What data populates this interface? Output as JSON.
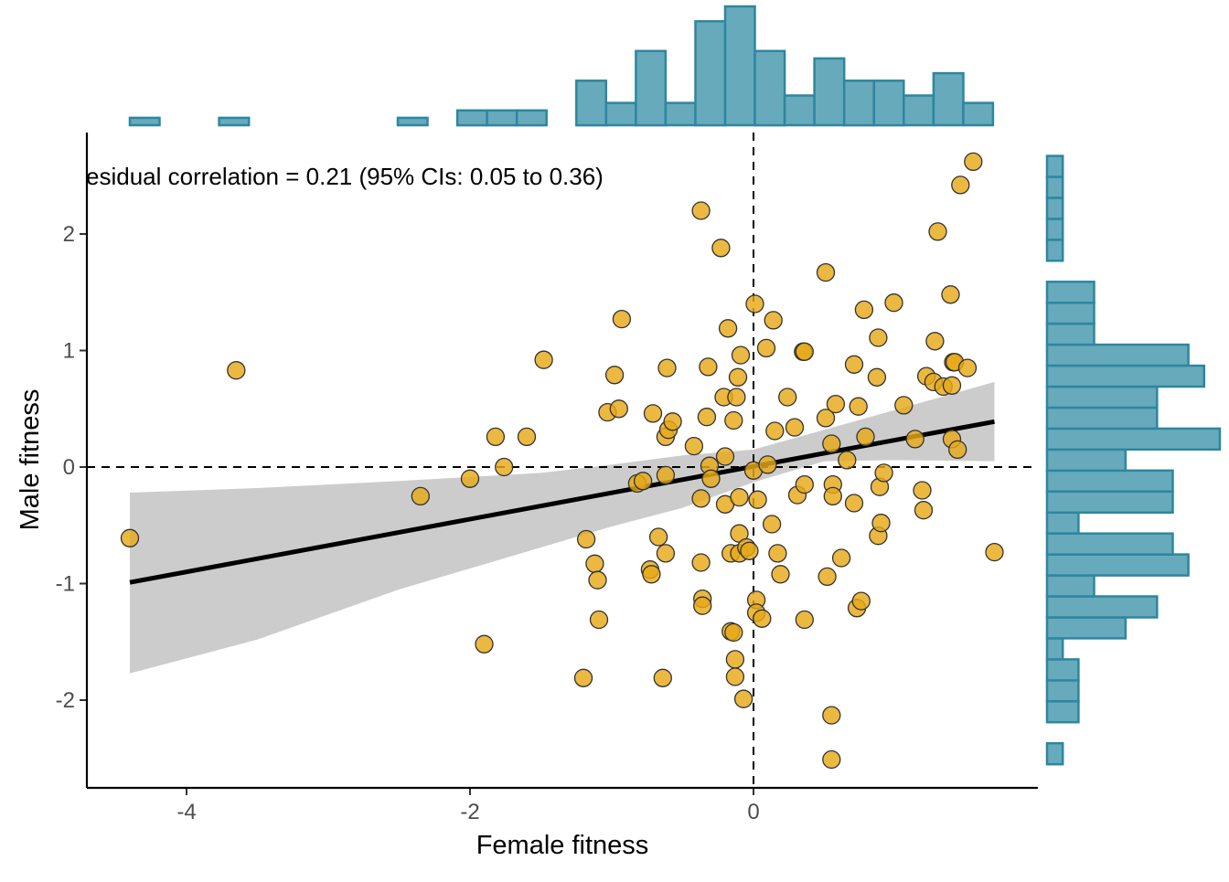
{
  "chart_data": {
    "type": "scatter",
    "title": "",
    "xlabel": "Female fitness",
    "ylabel": "Male fitness",
    "annotation": "esidual correlation = 0.21 (95% CIs: 0.05 to 0.36)",
    "xlim": [
      -4.7,
      2.0
    ],
    "ylim": [
      -2.75,
      2.85
    ],
    "x_ticks": [
      -4,
      -2,
      0
    ],
    "x_tick_labels": [
      "-4",
      "-2",
      "0"
    ],
    "y_ticks": [
      -2,
      -1,
      0,
      1,
      2
    ],
    "y_tick_labels": [
      "-2",
      "-1",
      "0",
      "1",
      "2"
    ],
    "grid": false,
    "reference_lines": {
      "x": 0,
      "y": 0,
      "style": "dashed"
    },
    "colors": {
      "points_fill": "#E6A817",
      "points_stroke": "#333333",
      "regression_line": "#000000",
      "confidence_band": "#CCCCCC",
      "histogram_fill": "#67AABB",
      "histogram_stroke": "#2E86A0"
    },
    "points": [
      {
        "x": -4.4,
        "y": -0.61
      },
      {
        "x": -3.65,
        "y": 0.83
      },
      {
        "x": -2.35,
        "y": -0.25
      },
      {
        "x": -2.0,
        "y": -0.1
      },
      {
        "x": -1.9,
        "y": -1.52
      },
      {
        "x": -1.82,
        "y": 0.26
      },
      {
        "x": -1.76,
        "y": 0.0
      },
      {
        "x": -1.6,
        "y": 0.26
      },
      {
        "x": -1.48,
        "y": 0.92
      },
      {
        "x": -1.2,
        "y": -1.81
      },
      {
        "x": -1.18,
        "y": -0.62
      },
      {
        "x": -1.12,
        "y": -0.83
      },
      {
        "x": -1.1,
        "y": -0.97
      },
      {
        "x": -1.09,
        "y": -1.31
      },
      {
        "x": -1.03,
        "y": 0.47
      },
      {
        "x": -0.98,
        "y": 0.79
      },
      {
        "x": -0.95,
        "y": 0.5
      },
      {
        "x": -0.93,
        "y": 1.27
      },
      {
        "x": -0.82,
        "y": -0.14
      },
      {
        "x": -0.78,
        "y": -0.12
      },
      {
        "x": -0.73,
        "y": -0.88
      },
      {
        "x": -0.72,
        "y": -0.92
      },
      {
        "x": -0.71,
        "y": 0.46
      },
      {
        "x": -0.67,
        "y": -0.6
      },
      {
        "x": -0.64,
        "y": -1.81
      },
      {
        "x": -0.62,
        "y": 0.26
      },
      {
        "x": -0.62,
        "y": -0.07
      },
      {
        "x": -0.62,
        "y": -0.74
      },
      {
        "x": -0.61,
        "y": 0.85
      },
      {
        "x": -0.6,
        "y": 0.32
      },
      {
        "x": -0.57,
        "y": 0.39
      },
      {
        "x": -0.42,
        "y": 0.18
      },
      {
        "x": -0.37,
        "y": 2.2
      },
      {
        "x": -0.37,
        "y": -0.27
      },
      {
        "x": -0.37,
        "y": -0.82
      },
      {
        "x": -0.36,
        "y": -1.13
      },
      {
        "x": -0.36,
        "y": -1.19
      },
      {
        "x": -0.33,
        "y": 0.43
      },
      {
        "x": -0.32,
        "y": 0.86
      },
      {
        "x": -0.31,
        "y": 0.01
      },
      {
        "x": -0.3,
        "y": -0.1
      },
      {
        "x": -0.23,
        "y": 1.88
      },
      {
        "x": -0.21,
        "y": 0.6
      },
      {
        "x": -0.2,
        "y": 0.09
      },
      {
        "x": -0.2,
        "y": -0.32
      },
      {
        "x": -0.18,
        "y": 1.19
      },
      {
        "x": -0.16,
        "y": -1.41
      },
      {
        "x": -0.16,
        "y": -0.74
      },
      {
        "x": -0.14,
        "y": -1.42
      },
      {
        "x": -0.14,
        "y": 0.4
      },
      {
        "x": -0.13,
        "y": -1.65
      },
      {
        "x": -0.13,
        "y": -1.8
      },
      {
        "x": -0.12,
        "y": 0.6
      },
      {
        "x": -0.11,
        "y": 0.77
      },
      {
        "x": -0.1,
        "y": -0.74
      },
      {
        "x": -0.1,
        "y": -0.26
      },
      {
        "x": -0.1,
        "y": -0.57
      },
      {
        "x": -0.09,
        "y": 0.96
      },
      {
        "x": -0.07,
        "y": -1.99
      },
      {
        "x": -0.05,
        "y": -0.69
      },
      {
        "x": -0.03,
        "y": -0.72
      },
      {
        "x": 0.0,
        "y": -0.03
      },
      {
        "x": 0.01,
        "y": 1.4
      },
      {
        "x": 0.02,
        "y": -1.14
      },
      {
        "x": 0.02,
        "y": -1.25
      },
      {
        "x": 0.03,
        "y": -0.28
      },
      {
        "x": 0.06,
        "y": -1.3
      },
      {
        "x": 0.09,
        "y": 1.02
      },
      {
        "x": 0.1,
        "y": 0.02
      },
      {
        "x": 0.13,
        "y": -0.49
      },
      {
        "x": 0.14,
        "y": 1.26
      },
      {
        "x": 0.15,
        "y": 0.31
      },
      {
        "x": 0.17,
        "y": -0.74
      },
      {
        "x": 0.19,
        "y": -0.92
      },
      {
        "x": 0.24,
        "y": 0.6
      },
      {
        "x": 0.29,
        "y": 0.34
      },
      {
        "x": 0.31,
        "y": -0.24
      },
      {
        "x": 0.35,
        "y": 0.99
      },
      {
        "x": 0.36,
        "y": 0.99
      },
      {
        "x": 0.36,
        "y": -1.31
      },
      {
        "x": 0.36,
        "y": -0.15
      },
      {
        "x": 0.51,
        "y": 1.67
      },
      {
        "x": 0.51,
        "y": 0.42
      },
      {
        "x": 0.52,
        "y": -0.94
      },
      {
        "x": 0.55,
        "y": 0.2
      },
      {
        "x": 0.55,
        "y": -2.13
      },
      {
        "x": 0.55,
        "y": -2.51
      },
      {
        "x": 0.56,
        "y": -0.15
      },
      {
        "x": 0.56,
        "y": -0.25
      },
      {
        "x": 0.58,
        "y": 0.54
      },
      {
        "x": 0.62,
        "y": -0.78
      },
      {
        "x": 0.66,
        "y": 0.06
      },
      {
        "x": 0.71,
        "y": 0.88
      },
      {
        "x": 0.71,
        "y": -0.31
      },
      {
        "x": 0.73,
        "y": -1.21
      },
      {
        "x": 0.74,
        "y": 0.52
      },
      {
        "x": 0.76,
        "y": -1.15
      },
      {
        "x": 0.78,
        "y": 1.35
      },
      {
        "x": 0.79,
        "y": 0.26
      },
      {
        "x": 0.87,
        "y": 0.77
      },
      {
        "x": 0.88,
        "y": 1.11
      },
      {
        "x": 0.88,
        "y": -0.59
      },
      {
        "x": 0.89,
        "y": -0.17
      },
      {
        "x": 0.9,
        "y": -0.48
      },
      {
        "x": 0.92,
        "y": -0.05
      },
      {
        "x": 0.99,
        "y": 1.41
      },
      {
        "x": 1.06,
        "y": 0.53
      },
      {
        "x": 1.14,
        "y": 0.24
      },
      {
        "x": 1.19,
        "y": -0.2
      },
      {
        "x": 1.2,
        "y": -0.37
      },
      {
        "x": 1.22,
        "y": 0.78
      },
      {
        "x": 1.27,
        "y": 0.73
      },
      {
        "x": 1.28,
        "y": 1.08
      },
      {
        "x": 1.3,
        "y": 2.02
      },
      {
        "x": 1.34,
        "y": 0.69
      },
      {
        "x": 1.39,
        "y": 1.48
      },
      {
        "x": 1.4,
        "y": 0.7
      },
      {
        "x": 1.4,
        "y": 0.24
      },
      {
        "x": 1.41,
        "y": 0.9
      },
      {
        "x": 1.42,
        "y": 0.9
      },
      {
        "x": 1.44,
        "y": 0.15
      },
      {
        "x": 1.46,
        "y": 2.42
      },
      {
        "x": 1.51,
        "y": 0.85
      },
      {
        "x": 1.55,
        "y": 2.62
      },
      {
        "x": 1.7,
        "y": -0.73
      }
    ],
    "regression": {
      "x": [
        -4.4,
        1.7
      ],
      "y": [
        -0.99,
        0.39
      ]
    },
    "confidence_band": {
      "x": [
        -4.4,
        -3.5,
        -2.5,
        -1.5,
        -1.0,
        -0.5,
        0.0,
        0.5,
        1.0,
        1.7
      ],
      "lower": [
        -1.77,
        -1.48,
        -1.05,
        -0.69,
        -0.51,
        -0.35,
        -0.13,
        0.05,
        0.06,
        0.05
      ],
      "upper": [
        -0.22,
        -0.18,
        -0.12,
        -0.05,
        0.02,
        0.1,
        0.15,
        0.32,
        0.49,
        0.73
      ]
    },
    "x_histogram": {
      "bin_edges": [
        -4.4,
        -4.19,
        -3.98,
        -3.77,
        -3.56,
        -3.35,
        -3.14,
        -2.93,
        -2.72,
        -2.51,
        -2.3,
        -2.09,
        -1.88,
        -1.67,
        -1.46,
        -1.25,
        -1.04,
        -0.83,
        -0.62,
        -0.41,
        -0.2,
        0.01,
        0.22,
        0.43,
        0.64,
        0.85,
        1.06,
        1.27,
        1.48,
        1.69
      ],
      "counts": [
        1,
        0,
        0,
        1,
        0,
        0,
        0,
        0,
        0,
        1,
        0,
        2,
        2,
        2,
        0,
        6,
        3,
        10,
        3,
        14,
        16,
        10,
        4,
        9,
        6,
        6,
        4,
        7,
        3
      ]
    },
    "y_histogram": {
      "bin_edges": [
        -2.55,
        -2.37,
        -2.19,
        -2.01,
        -1.83,
        -1.65,
        -1.47,
        -1.29,
        -1.11,
        -0.93,
        -0.75,
        -0.57,
        -0.39,
        -0.21,
        -0.03,
        0.15,
        0.33,
        0.51,
        0.69,
        0.87,
        1.05,
        1.23,
        1.41,
        1.59,
        1.77,
        1.95,
        2.13,
        2.31,
        2.49,
        2.67
      ],
      "counts": [
        1,
        0,
        2,
        2,
        2,
        1,
        5,
        7,
        3,
        9,
        8,
        2,
        8,
        8,
        5,
        11,
        7,
        7,
        10,
        9,
        3,
        3,
        3,
        0,
        1,
        1,
        1,
        1,
        1
      ]
    }
  }
}
